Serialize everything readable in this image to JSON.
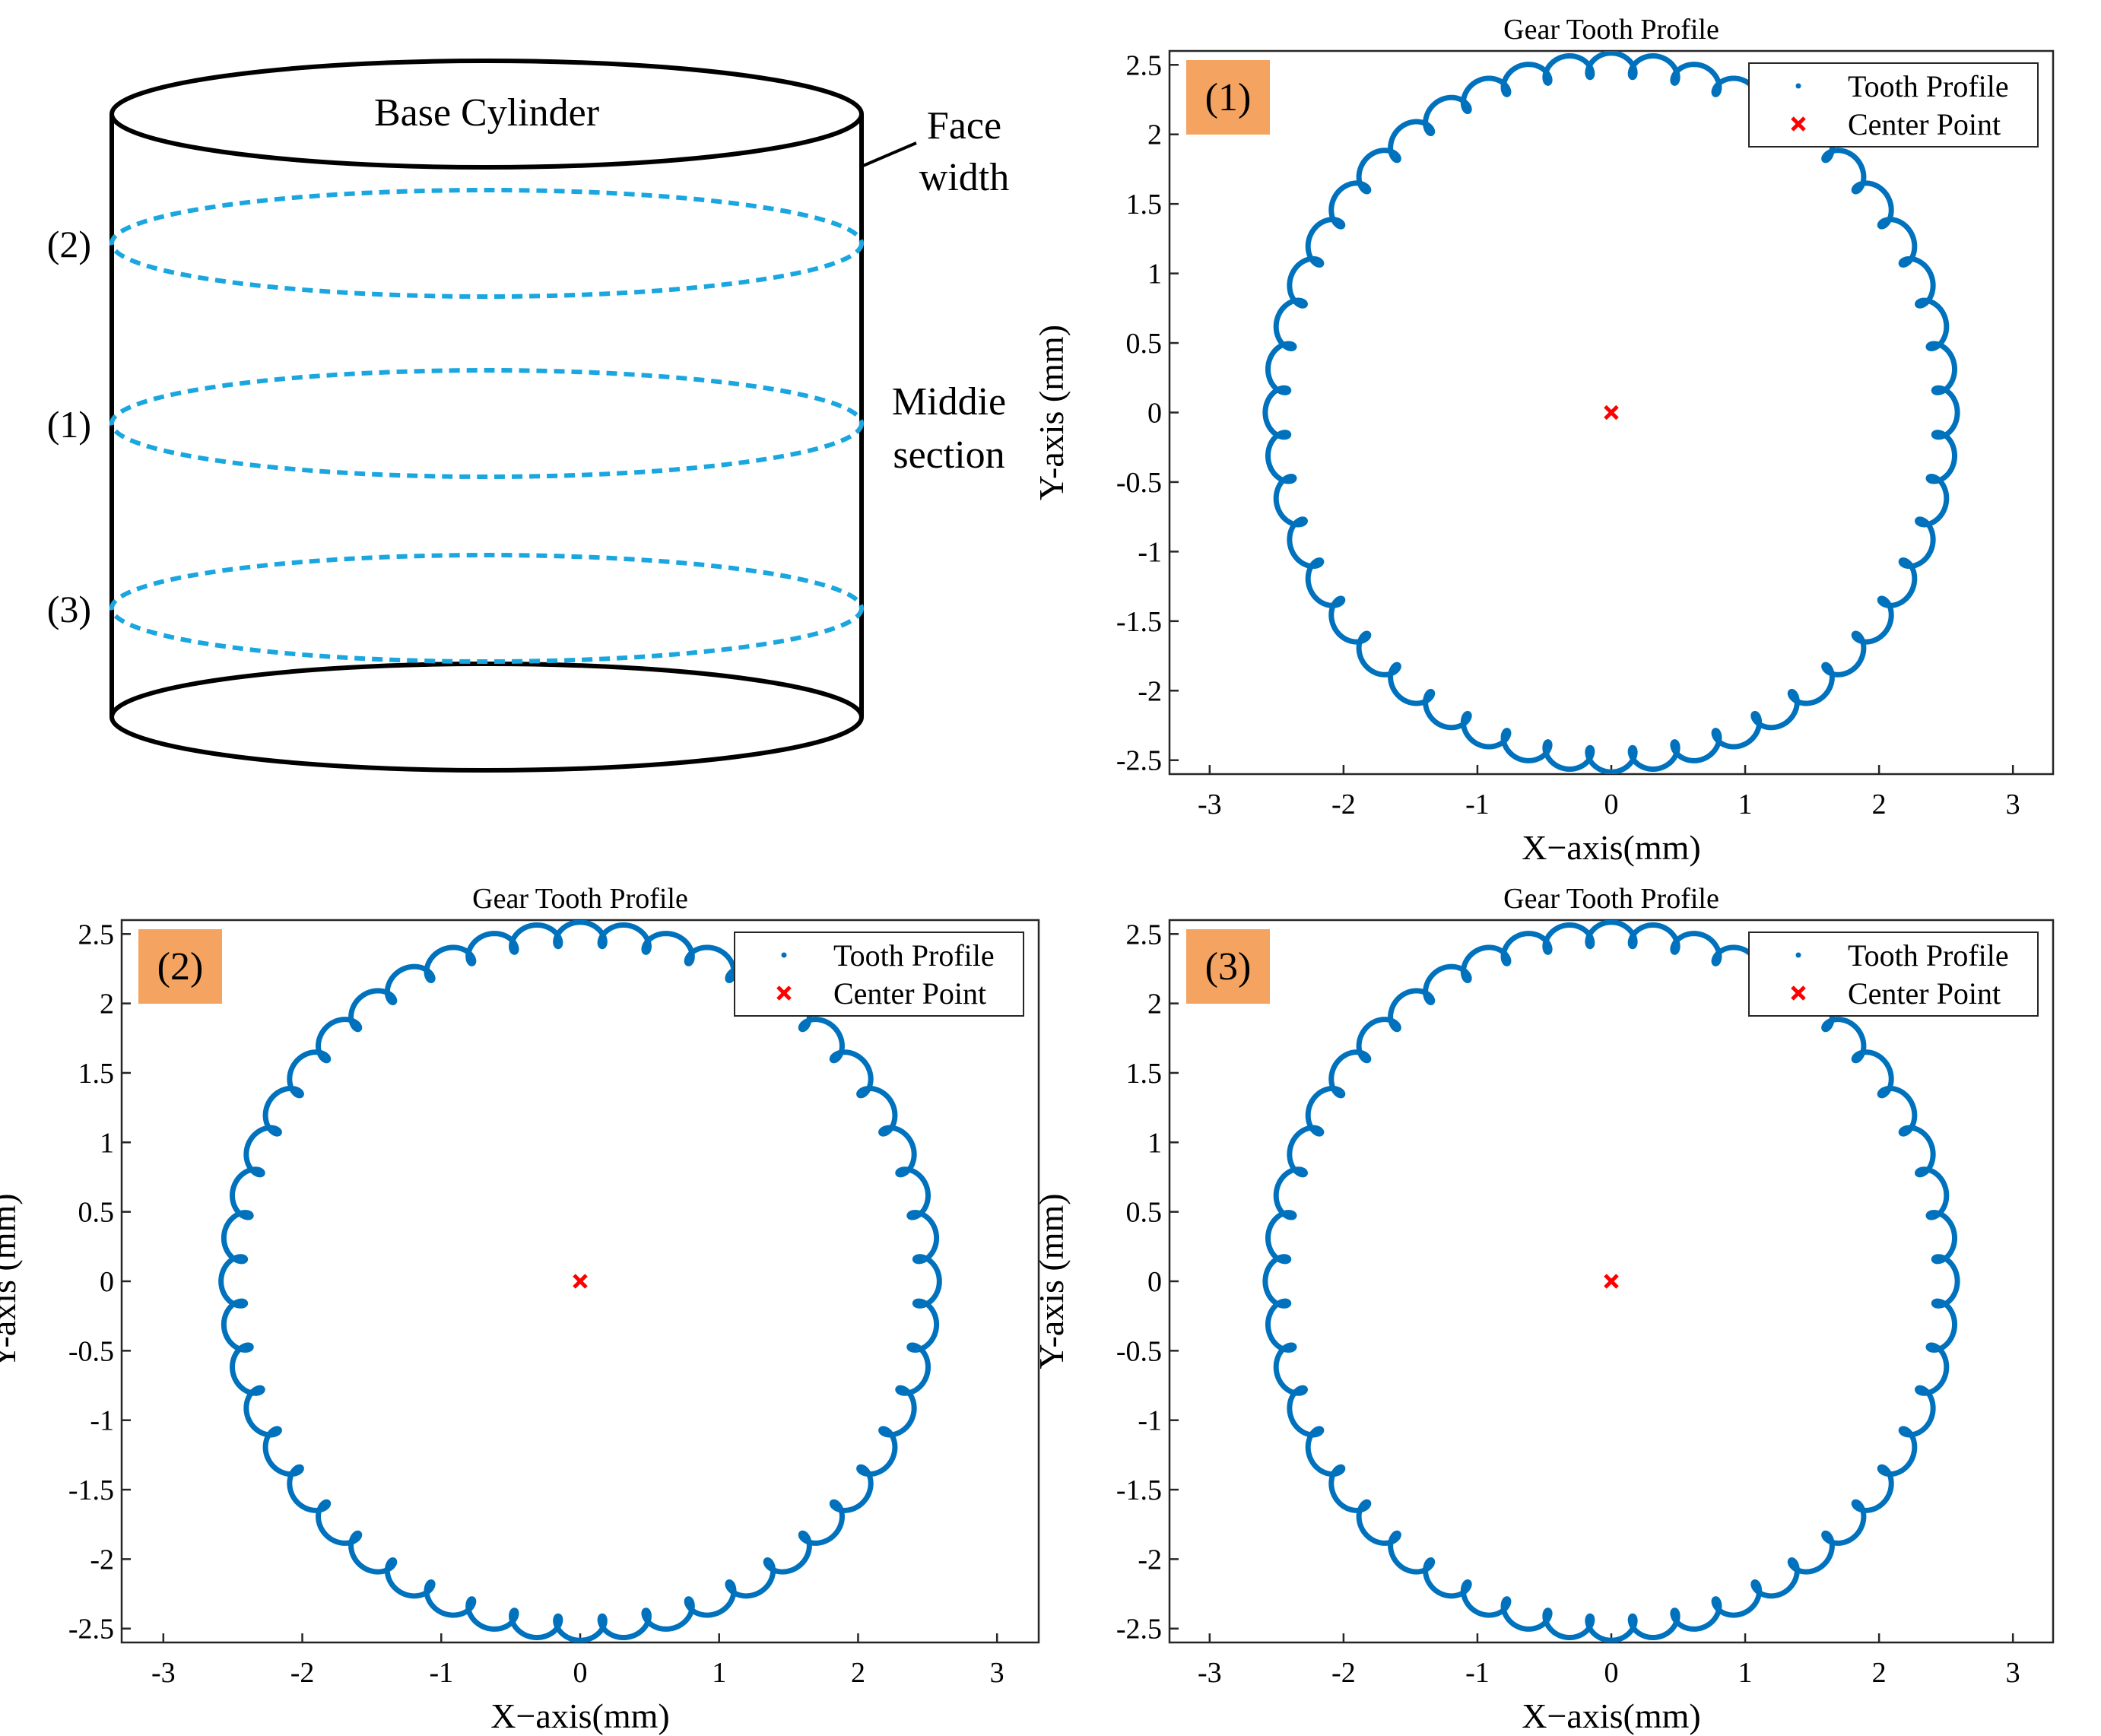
{
  "diagram": {
    "title": "Base Cylinder",
    "face_width_label": [
      "Face",
      "width"
    ],
    "middle_section_label": [
      "Middie",
      "section"
    ],
    "section_labels": [
      "(2)",
      "(1)",
      "(3)"
    ],
    "section_color": "#1aa7e0"
  },
  "colors": {
    "profile": "#0072bd",
    "center": "#ff0000",
    "badge": "#f4a460"
  },
  "chart_data": [
    {
      "type": "line",
      "panel": "(1)",
      "title": "Gear Tooth Profile",
      "xlabel": "X−axis(mm)",
      "ylabel": "Y-axis (mm)",
      "xlim": [
        -3.3,
        3.3
      ],
      "ylim": [
        -2.6,
        2.6
      ],
      "xticks": [
        -3,
        -2,
        -1,
        0,
        1,
        2,
        3
      ],
      "xtick_labels": [
        "-3",
        "-2",
        "-1",
        "0",
        "1",
        "2",
        "3"
      ],
      "yticks": [
        2.5,
        2,
        1.5,
        1,
        0.5,
        0,
        -0.5,
        -1,
        -1.5,
        -2,
        -2.5
      ],
      "ytick_labels": [
        "2.5",
        "2",
        "1.5",
        "1",
        "0.5",
        "0",
        "-0.5",
        "-1",
        "-1.5",
        "-2",
        "-2.5"
      ],
      "series": [
        {
          "name": "Tooth Profile",
          "kind": "closed-curve",
          "center": [
            0,
            0
          ],
          "mean_radius": 2.5,
          "tooth_amplitude": 0.085,
          "teeth": 48
        },
        {
          "name": "Center Point",
          "kind": "marker",
          "x": [
            0
          ],
          "y": [
            0
          ]
        }
      ],
      "legend": [
        "Tooth Profile",
        "Center Point"
      ],
      "legend_position": "top-right"
    },
    {
      "type": "line",
      "panel": "(2)",
      "title": "Gear Tooth Profile",
      "xlabel": "X−axis(mm)",
      "ylabel": "Y-axis (mm)",
      "xlim": [
        -3.3,
        3.3
      ],
      "ylim": [
        -2.6,
        2.6
      ],
      "xticks": [
        -3,
        -2,
        -1,
        0,
        1,
        2,
        3
      ],
      "xtick_labels": [
        "-3",
        "-2",
        "-1",
        "0",
        "1",
        "2",
        "3"
      ],
      "yticks": [
        2.5,
        2,
        1.5,
        1,
        0.5,
        0,
        -0.5,
        -1,
        -1.5,
        -2,
        -2.5
      ],
      "ytick_labels": [
        "2.5",
        "2",
        "1.5",
        "1",
        "0.5",
        "0",
        "-0.5",
        "-1",
        "-1.5",
        "-2",
        "-2.5"
      ],
      "series": [
        {
          "name": "Tooth Profile",
          "kind": "closed-curve",
          "center": [
            0,
            0
          ],
          "mean_radius": 2.5,
          "tooth_amplitude": 0.085,
          "teeth": 48
        },
        {
          "name": "Center Point",
          "kind": "marker",
          "x": [
            0
          ],
          "y": [
            0
          ]
        }
      ],
      "legend": [
        "Tooth Profile",
        "Center Point"
      ],
      "legend_position": "top-right"
    },
    {
      "type": "line",
      "panel": "(3)",
      "title": "Gear Tooth Profile",
      "xlabel": "X−axis(mm)",
      "ylabel": "Y-axis (mm)",
      "xlim": [
        -3.3,
        3.3
      ],
      "ylim": [
        -2.6,
        2.6
      ],
      "xticks": [
        -3,
        -2,
        -1,
        0,
        1,
        2,
        3
      ],
      "xtick_labels": [
        "-3",
        "-2",
        "-1",
        "0",
        "1",
        "2",
        "3"
      ],
      "yticks": [
        2.5,
        2,
        1.5,
        1,
        0.5,
        0,
        -0.5,
        -1,
        -1.5,
        -2,
        -2.5
      ],
      "ytick_labels": [
        "2.5",
        "2",
        "1.5",
        "1",
        "0.5",
        "0",
        "-0.5",
        "-1",
        "-1.5",
        "-2",
        "-2.5"
      ],
      "series": [
        {
          "name": "Tooth Profile",
          "kind": "closed-curve",
          "center": [
            0,
            0
          ],
          "mean_radius": 2.5,
          "tooth_amplitude": 0.085,
          "teeth": 48
        },
        {
          "name": "Center Point",
          "kind": "marker",
          "x": [
            0
          ],
          "y": [
            0
          ]
        }
      ],
      "legend": [
        "Tooth Profile",
        "Center Point"
      ],
      "legend_position": "top-right"
    }
  ]
}
